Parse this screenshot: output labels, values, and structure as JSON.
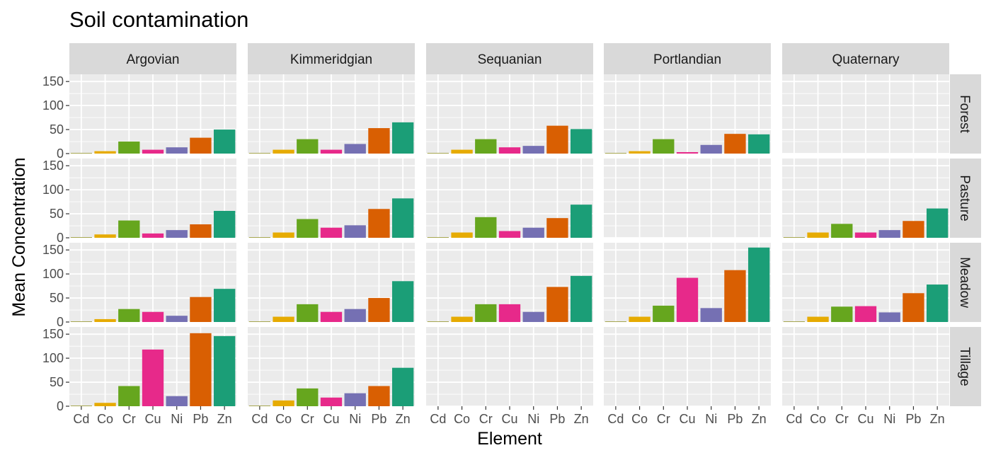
{
  "chart_data": {
    "type": "bar",
    "title": "Soil contamination",
    "xlabel": "Element",
    "ylabel": "Mean Concentration",
    "categories": [
      "Cd",
      "Co",
      "Cr",
      "Cu",
      "Ni",
      "Pb",
      "Zn"
    ],
    "ylim": [
      0,
      165
    ],
    "yticks": [
      0,
      50,
      100,
      150
    ],
    "facet_columns": [
      "Argovian",
      "Kimmeridgian",
      "Sequanian",
      "Portlandian",
      "Quaternary"
    ],
    "facet_rows": [
      "Forest",
      "Pasture",
      "Meadow",
      "Tillage"
    ],
    "colors": {
      "Cd": "#7f7f00",
      "Co": "#e6ab02",
      "Cr": "#66a61e",
      "Cu": "#e7298a",
      "Ni": "#7570b3",
      "Pb": "#d95f02",
      "Zn": "#1b9e77"
    },
    "grid": true,
    "legend": "none",
    "panels": [
      {
        "row": "Forest",
        "col": "Argovian",
        "values": [
          1,
          5,
          25,
          8,
          13,
          33,
          50
        ]
      },
      {
        "row": "Forest",
        "col": "Kimmeridgian",
        "values": [
          1,
          8,
          30,
          8,
          20,
          53,
          65
        ]
      },
      {
        "row": "Forest",
        "col": "Sequanian",
        "values": [
          1,
          8,
          30,
          13,
          16,
          58,
          51
        ]
      },
      {
        "row": "Forest",
        "col": "Portlandian",
        "values": [
          1,
          5,
          30,
          3,
          18,
          41,
          40
        ]
      },
      {
        "row": "Forest",
        "col": "Quaternary",
        "values": null
      },
      {
        "row": "Pasture",
        "col": "Argovian",
        "values": [
          1,
          7,
          36,
          9,
          16,
          28,
          56
        ]
      },
      {
        "row": "Pasture",
        "col": "Kimmeridgian",
        "values": [
          1,
          11,
          39,
          21,
          26,
          60,
          82
        ]
      },
      {
        "row": "Pasture",
        "col": "Sequanian",
        "values": [
          1,
          11,
          43,
          14,
          21,
          41,
          69
        ]
      },
      {
        "row": "Pasture",
        "col": "Portlandian",
        "values": null
      },
      {
        "row": "Pasture",
        "col": "Quaternary",
        "values": [
          1,
          11,
          29,
          11,
          16,
          35,
          61
        ]
      },
      {
        "row": "Meadow",
        "col": "Argovian",
        "values": [
          1,
          6,
          27,
          21,
          13,
          52,
          69
        ]
      },
      {
        "row": "Meadow",
        "col": "Kimmeridgian",
        "values": [
          1,
          11,
          37,
          21,
          27,
          50,
          85
        ]
      },
      {
        "row": "Meadow",
        "col": "Sequanian",
        "values": [
          1,
          11,
          37,
          37,
          21,
          73,
          96
        ]
      },
      {
        "row": "Meadow",
        "col": "Portlandian",
        "values": [
          1,
          11,
          34,
          92,
          29,
          108,
          155
        ]
      },
      {
        "row": "Meadow",
        "col": "Quaternary",
        "values": [
          1,
          11,
          32,
          33,
          20,
          60,
          78
        ]
      },
      {
        "row": "Tillage",
        "col": "Argovian",
        "values": [
          1,
          7,
          42,
          118,
          21,
          152,
          146
        ]
      },
      {
        "row": "Tillage",
        "col": "Kimmeridgian",
        "values": [
          1,
          12,
          37,
          18,
          27,
          42,
          80
        ]
      },
      {
        "row": "Tillage",
        "col": "Sequanian",
        "values": null
      },
      {
        "row": "Tillage",
        "col": "Portlandian",
        "values": null
      },
      {
        "row": "Tillage",
        "col": "Quaternary",
        "values": null
      }
    ]
  }
}
